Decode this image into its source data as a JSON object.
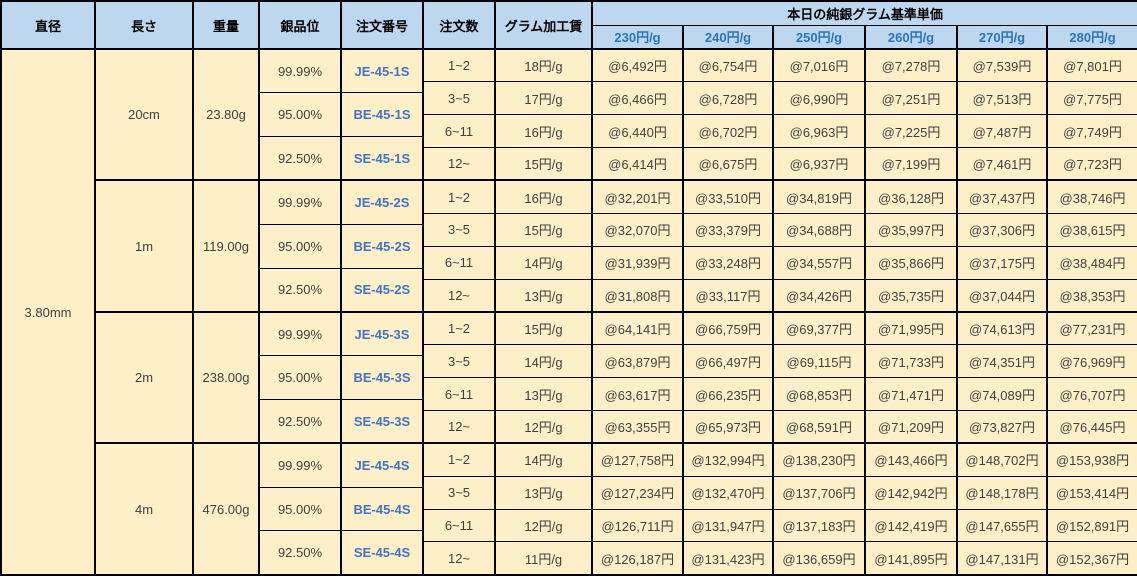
{
  "colors": {
    "header_bg": "#BDD7EE",
    "cell_bg": "#FDF0C8",
    "border": "#000000",
    "text": "#3F3F3F",
    "price_header_text": "#2E74B5",
    "order_no_text": "#4472C4"
  },
  "header": {
    "col_diameter": "直径",
    "col_length": "長さ",
    "col_weight": "重量",
    "col_purity": "銀品位",
    "col_order_no": "注文番号",
    "col_order_qty": "注文数",
    "col_fee": "グラム加工賃",
    "price_group_title": "本日の純銀グラム基準単価",
    "price_columns": [
      "230円/g",
      "240円/g",
      "250円/g",
      "260円/g",
      "270円/g",
      "280円/g"
    ]
  },
  "diameter": "3.80mm",
  "groups": [
    {
      "length": "20cm",
      "weight": "23.80g",
      "purities": [
        {
          "purity": "99.99%",
          "order_no": "JE-45-1S"
        },
        {
          "purity": "95.00%",
          "order_no": "BE-45-1S"
        },
        {
          "purity": "92.50%",
          "order_no": "SE-45-1S"
        }
      ],
      "rows": [
        {
          "qty": "1~2",
          "fee": "18円/g",
          "prices": [
            "@6,492円",
            "@6,754円",
            "@7,016円",
            "@7,278円",
            "@7,539円",
            "@7,801円"
          ]
        },
        {
          "qty": "3~5",
          "fee": "17円/g",
          "prices": [
            "@6,466円",
            "@6,728円",
            "@6,990円",
            "@7,251円",
            "@7,513円",
            "@7,775円"
          ]
        },
        {
          "qty": "6~11",
          "fee": "16円/g",
          "prices": [
            "@6,440円",
            "@6,702円",
            "@6,963円",
            "@7,225円",
            "@7,487円",
            "@7,749円"
          ]
        },
        {
          "qty": "12~",
          "fee": "15円/g",
          "prices": [
            "@6,414円",
            "@6,675円",
            "@6,937円",
            "@7,199円",
            "@7,461円",
            "@7,723円"
          ]
        }
      ]
    },
    {
      "length": "1m",
      "weight": "119.00g",
      "purities": [
        {
          "purity": "99.99%",
          "order_no": "JE-45-2S"
        },
        {
          "purity": "95.00%",
          "order_no": "BE-45-2S"
        },
        {
          "purity": "92.50%",
          "order_no": "SE-45-2S"
        }
      ],
      "rows": [
        {
          "qty": "1~2",
          "fee": "16円/g",
          "prices": [
            "@32,201円",
            "@33,510円",
            "@34,819円",
            "@36,128円",
            "@37,437円",
            "@38,746円"
          ]
        },
        {
          "qty": "3~5",
          "fee": "15円/g",
          "prices": [
            "@32,070円",
            "@33,379円",
            "@34,688円",
            "@35,997円",
            "@37,306円",
            "@38,615円"
          ]
        },
        {
          "qty": "6~11",
          "fee": "14円/g",
          "prices": [
            "@31,939円",
            "@33,248円",
            "@34,557円",
            "@35,866円",
            "@37,175円",
            "@38,484円"
          ]
        },
        {
          "qty": "12~",
          "fee": "13円/g",
          "prices": [
            "@31,808円",
            "@33,117円",
            "@34,426円",
            "@35,735円",
            "@37,044円",
            "@38,353円"
          ]
        }
      ]
    },
    {
      "length": "2m",
      "weight": "238.00g",
      "purities": [
        {
          "purity": "99.99%",
          "order_no": "JE-45-3S"
        },
        {
          "purity": "95.00%",
          "order_no": "BE-45-3S"
        },
        {
          "purity": "92.50%",
          "order_no": "SE-45-3S"
        }
      ],
      "rows": [
        {
          "qty": "1~2",
          "fee": "15円/g",
          "prices": [
            "@64,141円",
            "@66,759円",
            "@69,377円",
            "@71,995円",
            "@74,613円",
            "@77,231円"
          ]
        },
        {
          "qty": "3~5",
          "fee": "14円/g",
          "prices": [
            "@63,879円",
            "@66,497円",
            "@69,115円",
            "@71,733円",
            "@74,351円",
            "@76,969円"
          ]
        },
        {
          "qty": "6~11",
          "fee": "13円/g",
          "prices": [
            "@63,617円",
            "@66,235円",
            "@68,853円",
            "@71,471円",
            "@74,089円",
            "@76,707円"
          ]
        },
        {
          "qty": "12~",
          "fee": "12円/g",
          "prices": [
            "@63,355円",
            "@65,973円",
            "@68,591円",
            "@71,209円",
            "@73,827円",
            "@76,445円"
          ]
        }
      ]
    },
    {
      "length": "4m",
      "weight": "476.00g",
      "purities": [
        {
          "purity": "99.99%",
          "order_no": "JE-45-4S"
        },
        {
          "purity": "95.00%",
          "order_no": "BE-45-4S"
        },
        {
          "purity": "92.50%",
          "order_no": "SE-45-4S"
        }
      ],
      "rows": [
        {
          "qty": "1~2",
          "fee": "14円/g",
          "prices": [
            "@127,758円",
            "@132,994円",
            "@138,230円",
            "@143,466円",
            "@148,702円",
            "@153,938円"
          ]
        },
        {
          "qty": "3~5",
          "fee": "13円/g",
          "prices": [
            "@127,234円",
            "@132,470円",
            "@137,706円",
            "@142,942円",
            "@148,178円",
            "@153,414円"
          ]
        },
        {
          "qty": "6~11",
          "fee": "12円/g",
          "prices": [
            "@126,711円",
            "@131,947円",
            "@137,183円",
            "@142,419円",
            "@147,655円",
            "@152,891円"
          ]
        },
        {
          "qty": "12~",
          "fee": "11円/g",
          "prices": [
            "@126,187円",
            "@131,423円",
            "@136,659円",
            "@141,895円",
            "@147,131円",
            "@152,367円"
          ]
        }
      ]
    }
  ]
}
